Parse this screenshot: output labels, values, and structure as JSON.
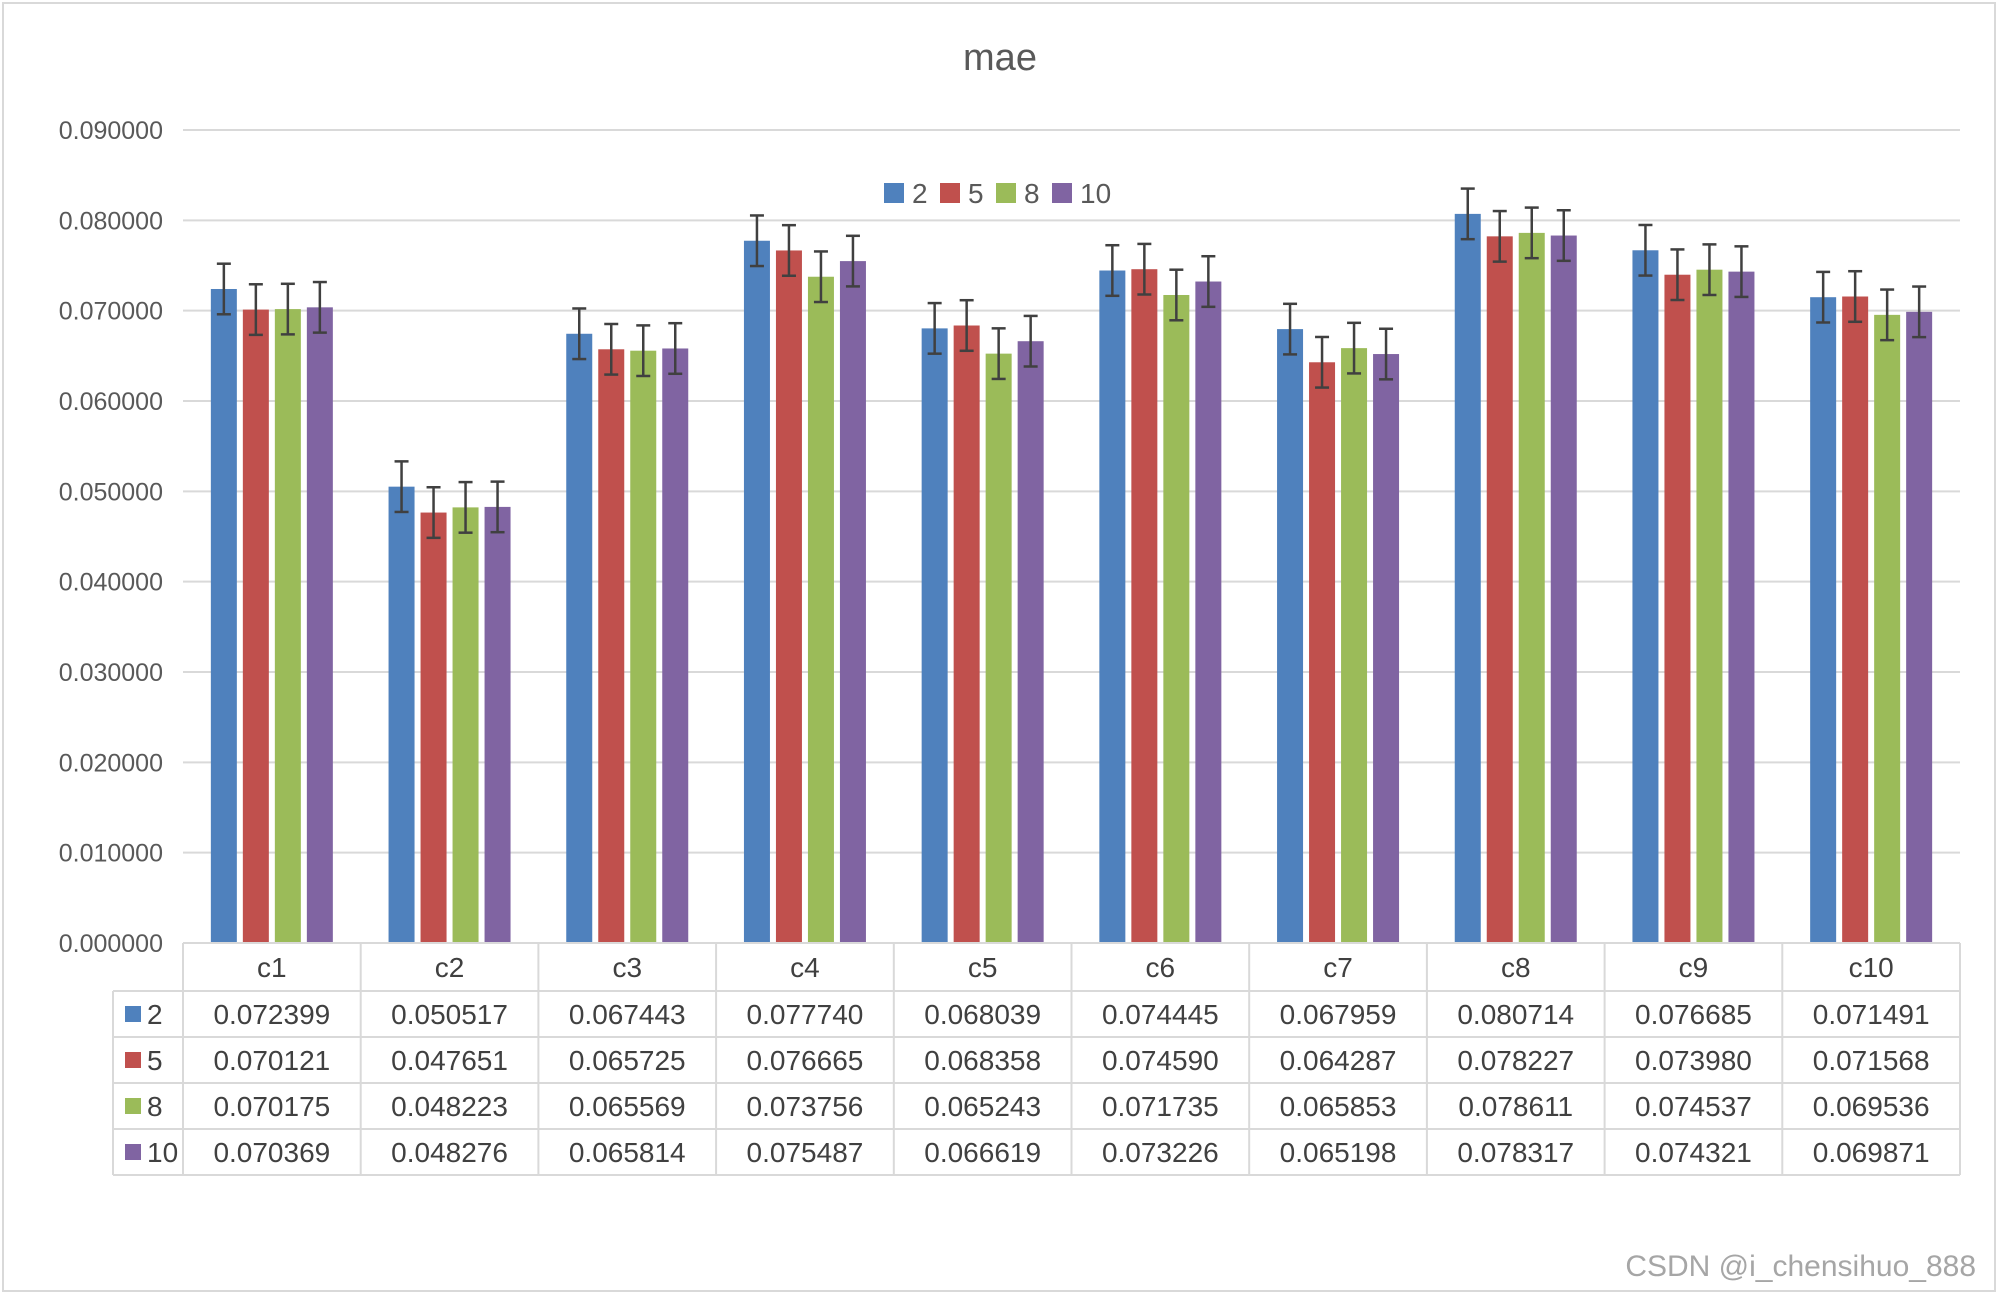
{
  "chart_data": {
    "type": "bar",
    "title": "mae",
    "xlabel": "",
    "ylabel": "",
    "ylim": [
      0,
      0.09
    ],
    "yticks": [
      "0.000000",
      "0.010000",
      "0.020000",
      "0.030000",
      "0.040000",
      "0.050000",
      "0.060000",
      "0.070000",
      "0.080000",
      "0.090000"
    ],
    "grid": true,
    "legend_position": "top-center",
    "error_bars": true,
    "data_table": true,
    "categories": [
      "c1",
      "c2",
      "c3",
      "c4",
      "c5",
      "c6",
      "c7",
      "c8",
      "c9",
      "c10"
    ],
    "series": [
      {
        "name": "2",
        "color": "#4f81bd",
        "values": [
          0.072399,
          0.050517,
          0.067443,
          0.07774,
          0.068039,
          0.074445,
          0.067959,
          0.080714,
          0.076685,
          0.071491
        ],
        "labels": [
          "0.072399",
          "0.050517",
          "0.067443",
          "0.077740",
          "0.068039",
          "0.074445",
          "0.067959",
          "0.080714",
          "0.076685",
          "0.071491"
        ]
      },
      {
        "name": "5",
        "color": "#c0504d",
        "values": [
          0.070121,
          0.047651,
          0.065725,
          0.076665,
          0.068358,
          0.07459,
          0.064287,
          0.078227,
          0.07398,
          0.071568
        ],
        "labels": [
          "0.070121",
          "0.047651",
          "0.065725",
          "0.076665",
          "0.068358",
          "0.074590",
          "0.064287",
          "0.078227",
          "0.073980",
          "0.071568"
        ]
      },
      {
        "name": "8",
        "color": "#9bbb59",
        "values": [
          0.070175,
          0.048223,
          0.065569,
          0.073756,
          0.065243,
          0.071735,
          0.065853,
          0.078611,
          0.074537,
          0.069536
        ],
        "labels": [
          "0.070175",
          "0.048223",
          "0.065569",
          "0.073756",
          "0.065243",
          "0.071735",
          "0.065853",
          "0.078611",
          "0.074537",
          "0.069536"
        ]
      },
      {
        "name": "10",
        "color": "#8064a2",
        "values": [
          0.070369,
          0.048276,
          0.065814,
          0.075487,
          0.066619,
          0.073226,
          0.065198,
          0.078317,
          0.074321,
          0.069871
        ],
        "labels": [
          "0.070369",
          "0.048276",
          "0.065814",
          "0.075487",
          "0.066619",
          "0.073226",
          "0.065198",
          "0.078317",
          "0.074321",
          "0.069871"
        ]
      }
    ]
  },
  "watermark": "CSDN @i_chensihuo_888"
}
